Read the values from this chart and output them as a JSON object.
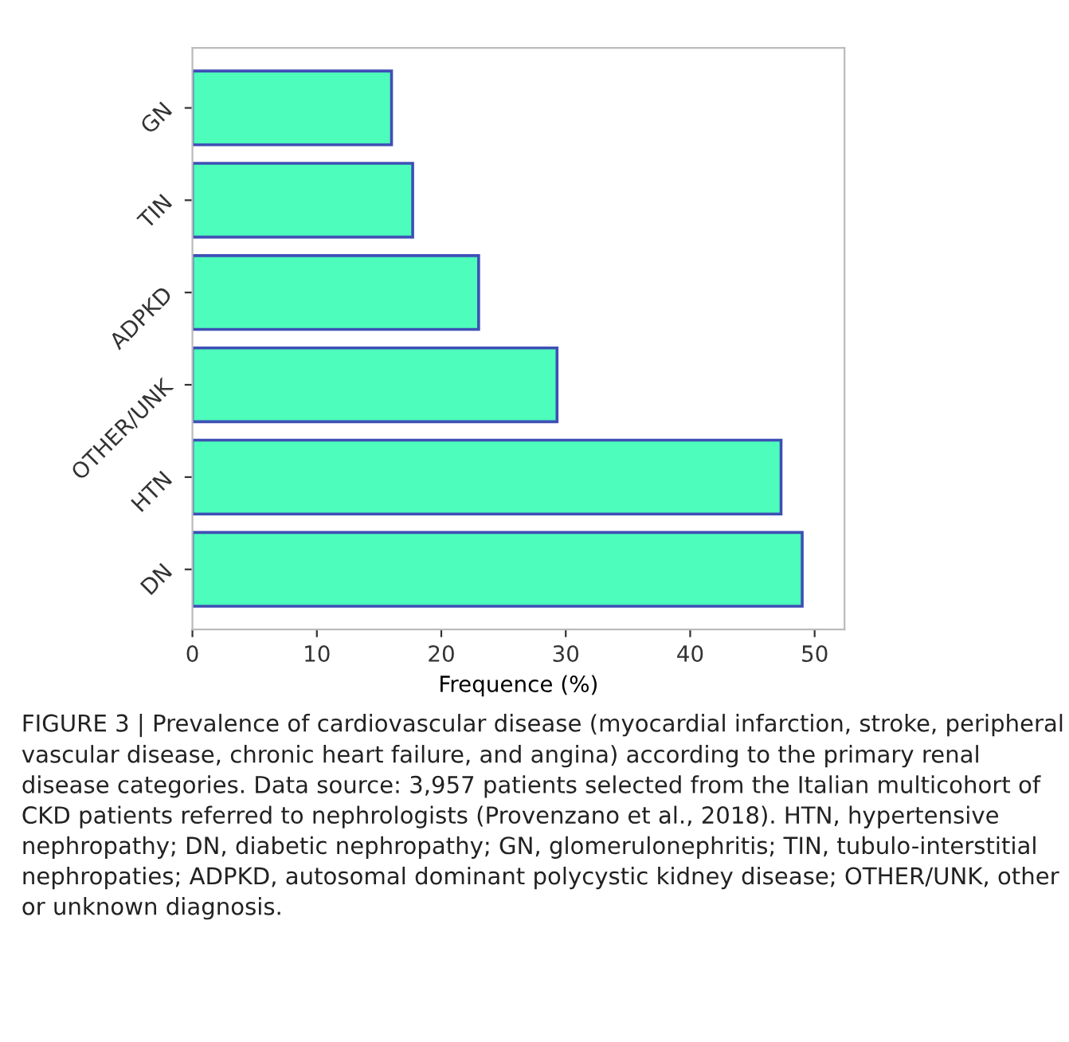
{
  "chart_data": {
    "type": "bar",
    "orientation": "horizontal",
    "categories": [
      "GN",
      "TIN",
      "ADPKD",
      "OTHER/UNK",
      "HTN",
      "DN"
    ],
    "values": [
      16.0,
      17.7,
      23.0,
      29.3,
      47.3,
      49.0
    ],
    "color": "#4dfdbb",
    "xlabel": "Frequence (%)",
    "xlim": [
      0,
      52.4
    ],
    "xticks": [
      0,
      10,
      20,
      30,
      40,
      50
    ],
    "grid": false,
    "annotations": [
      "FIGURE 3 | Prevalence of cardiovascular disease (myocardial infarction, stroke, peripheral vascular disease, chronic heart failure, and angina) according to the primary renal disease categories. Data source: 3,957 patients selected from the Italian multicohort of CKD patients referred to nephrologists (Provenzano et al., 2018). HTN, hypertensive nephropathy; DN, diabetic nephropathy; GN, glomerulonephritis; TIN, tubulo-interstitial nephropaties; ADPKD, autosomal dominant polycystic kidney disease; OTHER/UNK, other or unknown diagnosis."
    ]
  }
}
